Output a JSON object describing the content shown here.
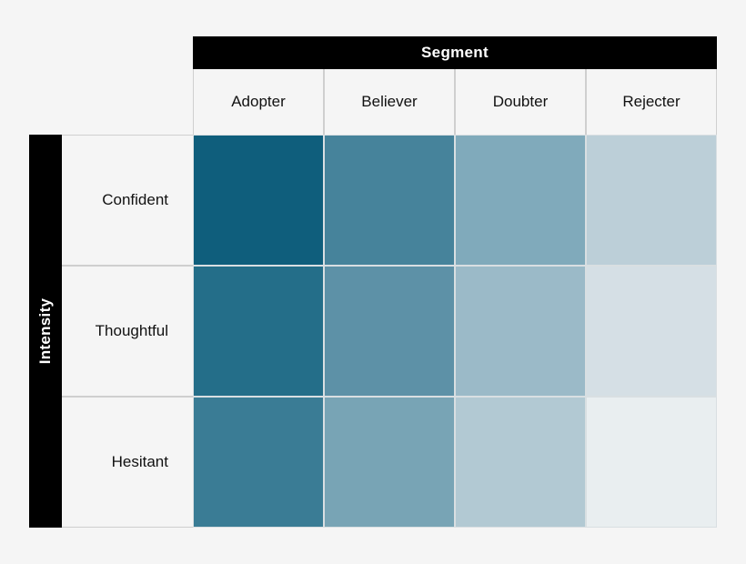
{
  "header": {
    "title": "Segment"
  },
  "sidebar": {
    "title": "Intensity"
  },
  "columns": [
    "Adopter",
    "Believer",
    "Doubter",
    "Rejecter"
  ],
  "rows": [
    "Confident",
    "Thoughtful",
    "Hesitant"
  ],
  "cell_colors": [
    [
      "#0f5e7c",
      "#46839b",
      "#80aabb",
      "#bccfd8"
    ],
    [
      "#246e89",
      "#5d91a7",
      "#9bbac8",
      "#d5dfe5"
    ],
    [
      "#3a7c95",
      "#78a4b5",
      "#b2c9d3",
      "#e9eef0"
    ]
  ]
}
